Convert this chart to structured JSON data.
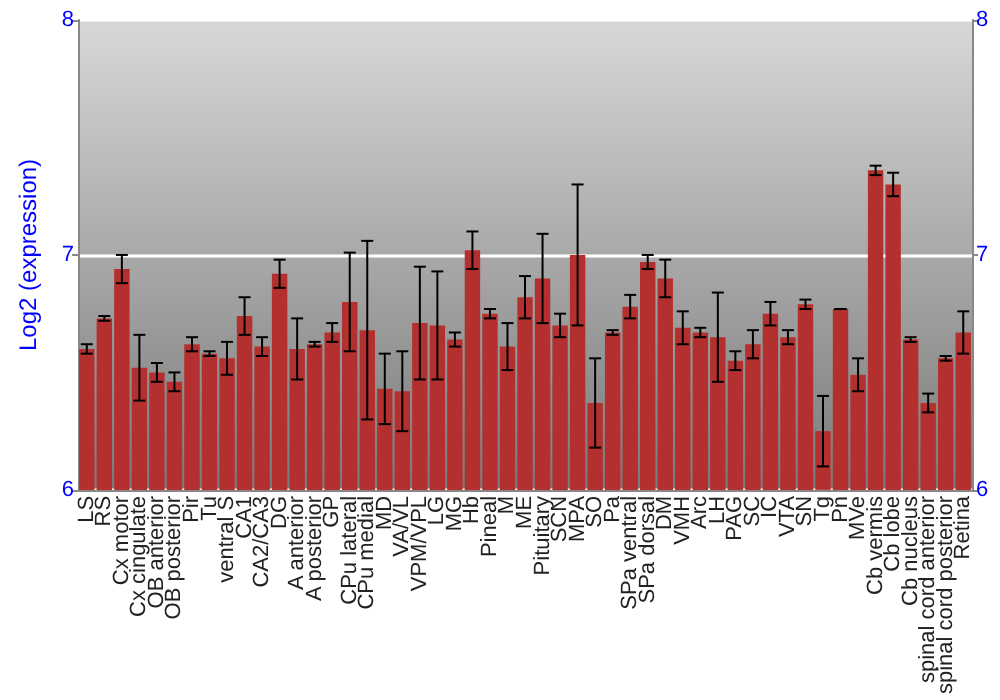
{
  "chart_data": {
    "type": "bar",
    "ylabel": "Log2 (expression)",
    "categories": [
      "LS",
      "RS",
      "Cx motor",
      "Cx cingulate",
      "OB anterior",
      "OB posterior",
      "Pir",
      "Tu",
      "ventral S",
      "CA1",
      "CA2/CA3",
      "DG",
      "A anterior",
      "A posterior",
      "GP",
      "CPu lateral",
      "CPu medial",
      "MD",
      "VA/VL",
      "VPM/VPL",
      "LG",
      "MG",
      "Hb",
      "Pineal",
      "M",
      "ME",
      "Pituitary",
      "SCN",
      "MPA",
      "SO",
      "Pa",
      "SPa ventral",
      "SPa dorsal",
      "DM",
      "VMH",
      "Arc",
      "LH",
      "PAG",
      "SC",
      "IC",
      "VTA",
      "SN",
      "Tg",
      "Pn",
      "MVe",
      "Cb vermis",
      "Cb lobe",
      "Cb nucleus",
      "spinal cord anterior",
      "spinal cord posterior",
      "Retina"
    ],
    "values": [
      6.6,
      6.73,
      6.94,
      6.52,
      6.5,
      6.46,
      6.62,
      6.58,
      6.56,
      6.74,
      6.61,
      6.92,
      6.6,
      6.62,
      6.67,
      6.8,
      6.68,
      6.43,
      6.42,
      6.71,
      6.7,
      6.64,
      7.02,
      6.75,
      6.61,
      6.82,
      6.9,
      6.7,
      7.0,
      6.37,
      6.67,
      6.78,
      6.97,
      6.9,
      6.69,
      6.67,
      6.65,
      6.55,
      6.62,
      6.75,
      6.65,
      6.79,
      6.25,
      6.77,
      6.49,
      7.36,
      7.3,
      6.64,
      6.37,
      6.56,
      6.67
    ],
    "errors": [
      0.02,
      0.01,
      0.06,
      0.14,
      0.04,
      0.04,
      0.03,
      0.01,
      0.07,
      0.08,
      0.04,
      0.06,
      0.13,
      0.01,
      0.04,
      0.21,
      0.38,
      0.15,
      0.17,
      0.24,
      0.23,
      0.03,
      0.08,
      0.02,
      0.1,
      0.09,
      0.19,
      0.05,
      0.3,
      0.19,
      0.01,
      0.05,
      0.03,
      0.08,
      0.07,
      0.02,
      0.19,
      0.04,
      0.06,
      0.05,
      0.03,
      0.02,
      0.15,
      0.0,
      0.07,
      0.02,
      0.05,
      0.01,
      0.04,
      0.01,
      0.09
    ],
    "color": "#b3302e",
    "ylim": [
      6,
      8
    ],
    "yticks": [
      6,
      7,
      8
    ],
    "y2lim": [
      6,
      8
    ],
    "y2ticks": [
      6,
      7,
      8
    ],
    "grid": "y"
  }
}
